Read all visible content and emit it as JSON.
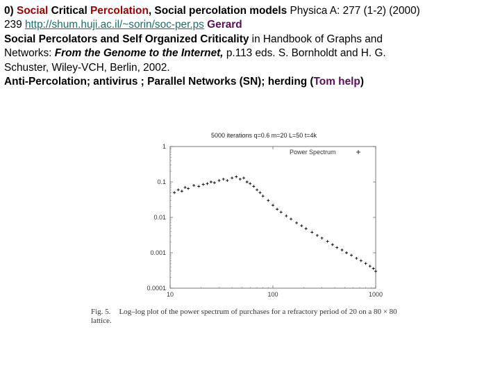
{
  "text": {
    "l1_num": "0) ",
    "l1_social": "Social",
    "l1_critical": " Critical ",
    "l1_percolation": "Percolation",
    "l1_rest": ", Social percolation models ",
    "l1_journal": "Physica A: 277 (1-2) (2000)",
    "l2_pages": "239 ",
    "l2_url": "http://shum.huji.ac.il/~sorin/soc-per.ps",
    "l2_gerard": "Gerard",
    "l3_title": "Social Percolators and Self Organized Criticality",
    "l3_rest": " in Handbook of Graphs and",
    "l4_networks": "Networks: ",
    "l4_book": "From the Genome to the Internet,",
    "l4_rest": " p.113 eds. S. Bornholdt and H. G.",
    "l5": "Schuster, Wiley-VCH, Berlin, 2002.",
    "l6_main": "Anti-Percolation; antivirus ; Parallel Networks (SN); herding (",
    "l6_tom": "Tom help",
    "l6_close": ")"
  },
  "caption": {
    "fig": "Fig. 5.",
    "line1": "Log–log plot of the power spectrum of purchases for a refractory period of 20 on a 80 × 80",
    "line2": "lattice."
  },
  "chart_data": {
    "type": "scatter",
    "title": "5000 iterations q=0.6 m=20 L=50 t=4k",
    "legend": "Power Spectrum",
    "legend_position": "top-right",
    "x_scale": "log",
    "y_scale": "log",
    "xlim": [
      10,
      1000
    ],
    "ylim": [
      0.0001,
      1
    ],
    "x_ticks": [
      "10",
      "100",
      "1000"
    ],
    "y_ticks": [
      "1",
      "0.1",
      "0.01",
      "0.001",
      "0.0001"
    ],
    "series": [
      {
        "name": "Power Spectrum",
        "x": [
          11,
          12,
          13,
          14,
          15,
          17,
          19,
          21,
          23,
          25,
          27,
          30,
          33,
          36,
          40,
          44,
          48,
          52,
          56,
          60,
          65,
          70,
          75,
          80,
          90,
          100,
          110,
          120,
          135,
          150,
          170,
          190,
          210,
          240,
          270,
          300,
          340,
          380,
          420,
          470,
          520,
          580,
          650,
          720,
          800,
          880,
          950,
          1000
        ],
        "y": [
          0.05,
          0.06,
          0.055,
          0.07,
          0.065,
          0.08,
          0.075,
          0.085,
          0.09,
          0.1,
          0.095,
          0.11,
          0.12,
          0.11,
          0.13,
          0.14,
          0.12,
          0.13,
          0.1,
          0.09,
          0.075,
          0.06,
          0.05,
          0.04,
          0.03,
          0.022,
          0.017,
          0.014,
          0.011,
          0.009,
          0.007,
          0.0058,
          0.0048,
          0.0038,
          0.0031,
          0.0026,
          0.0021,
          0.0017,
          0.0014,
          0.0012,
          0.001,
          0.00085,
          0.0007,
          0.0006,
          0.0005,
          0.00042,
          0.00036,
          0.0003
        ]
      }
    ]
  }
}
